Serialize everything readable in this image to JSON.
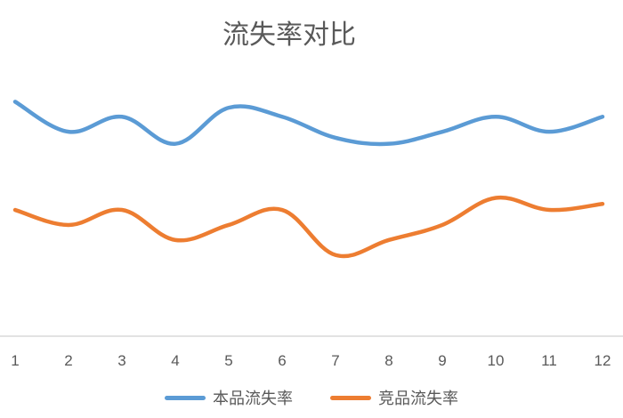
{
  "chart_data": {
    "type": "line",
    "title": "流失率对比",
    "x": [
      "1",
      "2",
      "3",
      "4",
      "5",
      "6",
      "7",
      "8",
      "9",
      "10",
      "11",
      "12"
    ],
    "ylim": [
      0,
      10
    ],
    "grid": false,
    "legend_position": "bottom",
    "smooth": true,
    "series": [
      {
        "name": "本品流失率",
        "color": "#5B9BD5",
        "values": [
          7.8,
          6.8,
          7.3,
          6.4,
          7.6,
          7.3,
          6.6,
          6.4,
          6.8,
          7.3,
          6.8,
          7.3
        ]
      },
      {
        "name": "竞品流失率",
        "color": "#ED7D31",
        "values": [
          4.2,
          3.7,
          4.2,
          3.2,
          3.7,
          4.2,
          2.7,
          3.2,
          3.7,
          4.6,
          4.2,
          4.4
        ]
      }
    ]
  }
}
